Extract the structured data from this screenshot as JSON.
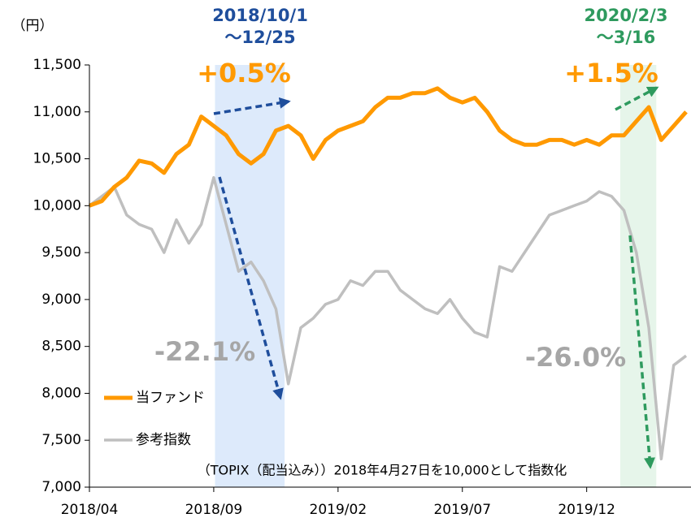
{
  "chart_data": {
    "type": "line",
    "y_unit": "（円）",
    "note": "（TOPIX（配当込み））2018年4月27日を10,000として指数化",
    "categories": [
      "2018/04",
      null,
      null,
      null,
      null,
      null,
      null,
      null,
      null,
      null,
      "2018/09",
      null,
      null,
      null,
      null,
      null,
      null,
      null,
      null,
      null,
      "2019/02",
      null,
      null,
      null,
      null,
      null,
      null,
      null,
      null,
      null,
      "2019/07",
      null,
      null,
      null,
      null,
      null,
      null,
      null,
      null,
      null,
      "2019/12",
      null,
      null,
      null,
      null,
      null,
      null,
      null,
      null
    ],
    "series": [
      {
        "name": "当ファンド",
        "color": "#ff9900",
        "width": 5,
        "values": [
          10000,
          10050,
          10200,
          10300,
          10480,
          10450,
          10350,
          10550,
          10650,
          10950,
          10850,
          10750,
          10550,
          10450,
          10550,
          10800,
          10850,
          10750,
          10500,
          10700,
          10800,
          10850,
          10900,
          11050,
          11150,
          11150,
          11200,
          11200,
          11250,
          11150,
          11100,
          11150,
          11000,
          10800,
          10700,
          10650,
          10650,
          10700,
          10700,
          10650,
          10700,
          10650,
          10750,
          10750,
          10900,
          11050,
          10700,
          10850,
          11000
        ]
      },
      {
        "name": "参考指数",
        "color": "#bfbfbf",
        "width": 3.5,
        "values": [
          10000,
          10100,
          10200,
          9900,
          9800,
          9750,
          9500,
          9850,
          9600,
          9800,
          10300,
          9800,
          9300,
          9400,
          9200,
          8900,
          8100,
          8700,
          8800,
          8950,
          9000,
          9200,
          9150,
          9300,
          9300,
          9100,
          9000,
          8900,
          8850,
          9000,
          8800,
          8650,
          8600,
          9350,
          9300,
          9500,
          9700,
          9900,
          9950,
          10000,
          10050,
          10150,
          10100,
          9950,
          9500,
          8700,
          7300,
          8300,
          8400
        ]
      }
    ],
    "ylim": [
      7000,
      11500
    ],
    "yticks": [
      {
        "value": 7000,
        "label": "7,000"
      },
      {
        "value": 7500,
        "label": "7,500"
      },
      {
        "value": 8000,
        "label": "8,000"
      },
      {
        "value": 8500,
        "label": "8,500"
      },
      {
        "value": 9000,
        "label": "9,000"
      },
      {
        "value": 9500,
        "label": "9,500"
      },
      {
        "value": 10000,
        "label": "10,000"
      },
      {
        "value": 10500,
        "label": "10,500"
      },
      {
        "value": 11000,
        "label": "11,000"
      },
      {
        "value": 11500,
        "label": "11,500"
      }
    ],
    "highlights": [
      {
        "from": 10.1,
        "to": 15.7,
        "color": "#ddeafb",
        "title": [
          "2018/10/1",
          "～12/25"
        ],
        "title_color": "#1f4e9c",
        "fund_change": "+0.5%",
        "index_change": "-22.1%"
      },
      {
        "from": 42.7,
        "to": 45.6,
        "color": "#e6f5ea",
        "title": [
          "2020/2/3",
          "～3/16"
        ],
        "title_color": "#2e9a5e",
        "fund_change": "+1.5%",
        "index_change": "-26.0%"
      }
    ]
  }
}
